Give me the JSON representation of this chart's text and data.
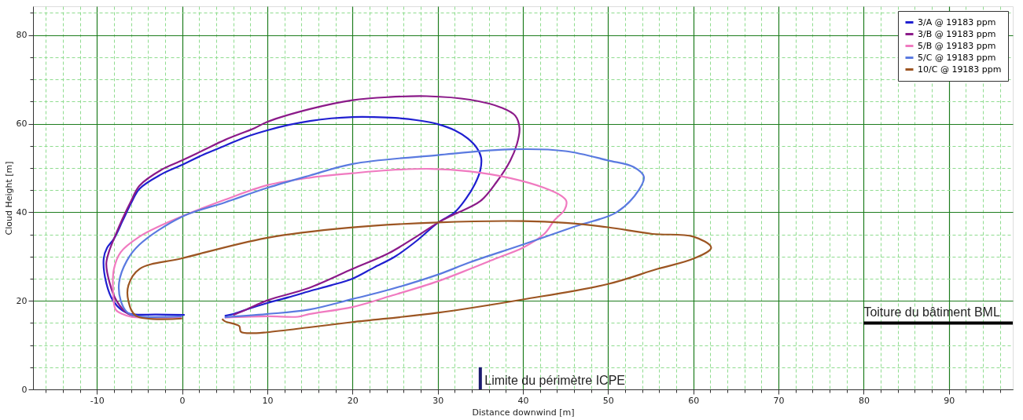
{
  "chart_data": {
    "type": "line",
    "xlabel": "Distance downwind [m]",
    "ylabel": "Cloud Height [m]",
    "xlim": [
      -17.5,
      97.5
    ],
    "ylim": [
      0,
      86.5
    ],
    "xticks": [
      {
        "value": -16,
        "label": null
      },
      {
        "value": -14,
        "label": null
      },
      {
        "value": -12,
        "label": null
      },
      -10,
      {
        "value": -8,
        "label": null
      },
      {
        "value": -6,
        "label": null
      },
      {
        "value": -4,
        "label": null
      },
      {
        "value": -2,
        "label": null
      },
      0,
      {
        "value": 2,
        "label": null
      },
      {
        "value": 4,
        "label": null
      },
      {
        "value": 6,
        "label": null
      },
      {
        "value": 8,
        "label": null
      },
      10,
      {
        "value": 12,
        "label": null
      },
      {
        "value": 14,
        "label": null
      },
      {
        "value": 16,
        "label": null
      },
      {
        "value": 18,
        "label": null
      },
      20,
      {
        "value": 22,
        "label": null
      },
      {
        "value": 24,
        "label": null
      },
      {
        "value": 26,
        "label": null
      },
      {
        "value": 28,
        "label": null
      },
      30,
      {
        "value": 32,
        "label": null
      },
      {
        "value": 34,
        "label": null
      },
      {
        "value": 36,
        "label": null
      },
      {
        "value": 38,
        "label": null
      },
      40,
      {
        "value": 42,
        "label": null
      },
      {
        "value": 44,
        "label": null
      },
      {
        "value": 46,
        "label": null
      },
      {
        "value": 48,
        "label": null
      },
      50,
      {
        "value": 52,
        "label": null
      },
      {
        "value": 54,
        "label": null
      },
      {
        "value": 56,
        "label": null
      },
      {
        "value": 58,
        "label": null
      },
      60,
      {
        "value": 62,
        "label": null
      },
      {
        "value": 64,
        "label": null
      },
      {
        "value": 66,
        "label": null
      },
      {
        "value": 68,
        "label": null
      },
      70,
      {
        "value": 72,
        "label": null
      },
      {
        "value": 74,
        "label": null
      },
      {
        "value": 76,
        "label": null
      },
      {
        "value": 78,
        "label": null
      },
      80,
      {
        "value": 82,
        "label": null
      },
      {
        "value": 84,
        "label": null
      },
      {
        "value": 86,
        "label": null
      },
      {
        "value": 88,
        "label": null
      },
      90,
      {
        "value": 92,
        "label": null
      },
      {
        "value": 94,
        "label": null
      },
      {
        "value": 96,
        "label": null
      }
    ],
    "yticks": [
      0,
      {
        "value": 5,
        "label": null
      },
      {
        "value": 10,
        "label": null
      },
      {
        "value": 15,
        "label": null
      },
      20,
      {
        "value": 25,
        "label": null
      },
      {
        "value": 30,
        "label": null
      },
      {
        "value": 35,
        "label": null
      },
      40,
      {
        "value": 45,
        "label": null
      },
      {
        "value": 50,
        "label": null
      },
      {
        "value": 55,
        "label": null
      },
      60,
      {
        "value": 65,
        "label": null
      },
      {
        "value": 70,
        "label": null
      },
      {
        "value": 75,
        "label": null
      },
      80,
      {
        "value": 85,
        "label": null
      }
    ],
    "grid": true,
    "legend": "top right",
    "marker": "none",
    "line_style": "solid",
    "series": [
      {
        "name": "3/A @ 19183 ppm",
        "color": "#1f1fd0",
        "x": [
          0.3,
          -3,
          -6,
          -7,
          -8.1,
          -8.9,
          -9.2,
          -8.8,
          -8,
          -7,
          -6,
          -5,
          -2.5,
          0,
          2.5,
          5,
          7.5,
          10,
          12.5,
          15,
          17.5,
          20,
          22.5,
          25,
          27.5,
          30,
          32,
          33.5,
          34.6,
          35.1,
          35,
          34.4,
          33.3,
          32,
          30,
          27.5,
          25,
          22.5,
          20,
          17.5,
          15,
          12.5,
          10,
          7.5,
          6,
          5
        ],
        "values": [
          16.8,
          16.9,
          17,
          17.8,
          20,
          24,
          29.6,
          32,
          34,
          38,
          42,
          45.3,
          48.5,
          50.7,
          53,
          55,
          57,
          58.5,
          59.7,
          60.6,
          61.2,
          61.5,
          61.5,
          61.3,
          60.8,
          59.9,
          58.5,
          56.7,
          54.5,
          52.3,
          49.5,
          46.5,
          43,
          40,
          37.6,
          33.5,
          30,
          27.5,
          25,
          23.5,
          22.2,
          20.8,
          19.5,
          18,
          17,
          16.6
        ]
      },
      {
        "name": "3/B @ 19183 ppm",
        "color": "#8b1a89",
        "x": [
          -4,
          -6.3,
          -7.7,
          -8.5,
          -8.9,
          -8.6,
          -8,
          -7,
          -6,
          -5,
          -2.5,
          0,
          2.5,
          5,
          8.5,
          10,
          15,
          20,
          24.3,
          28.7,
          33.8,
          37.5,
          39.1,
          39.6,
          39.3,
          38.5,
          36.9,
          35,
          31.8,
          30,
          27.5,
          24.3,
          20,
          14.9,
          10,
          7.5,
          6
        ],
        "values": [
          16.2,
          17,
          20,
          24,
          28.4,
          31,
          34,
          38.5,
          42.5,
          46,
          49.5,
          51.7,
          54,
          56.3,
          59,
          60.4,
          63.3,
          65.3,
          66,
          66.2,
          65.4,
          63.6,
          61.8,
          59,
          55.4,
          51.6,
          46.8,
          42.5,
          39.4,
          37.6,
          34.5,
          30.8,
          27.2,
          22.9,
          20.1,
          18,
          16.8
        ]
      },
      {
        "name": "5/B @ 19183 ppm",
        "color": "#f07ac0",
        "x": [
          0,
          -4,
          -6,
          -7,
          -7.8,
          -8.1,
          -8,
          -7.2,
          -5,
          -2.5,
          0,
          5,
          10,
          15,
          20,
          24.3,
          29.2,
          33.8,
          38.5,
          42.5,
          44.5,
          45.1,
          44.9,
          43.7,
          42.5,
          40,
          36.9,
          33.8,
          30,
          24.3,
          20,
          14.9,
          13.6,
          10,
          5
        ],
        "values": [
          16.2,
          16.2,
          16.4,
          17,
          18,
          22,
          27.2,
          31,
          34.5,
          37,
          39.1,
          42.8,
          46.1,
          47.8,
          48.8,
          49.5,
          49.8,
          49.2,
          47.7,
          45.5,
          43.7,
          42.5,
          40.6,
          38.2,
          35.1,
          32,
          29.6,
          27.2,
          24.4,
          21,
          18.6,
          17,
          16.4,
          16.5,
          16.2
        ]
      },
      {
        "name": "5/C @ 19183 ppm",
        "color": "#5a7ae0",
        "x": [
          0,
          -5.5,
          -6.5,
          -7.2,
          -7.4,
          -6.5,
          -5,
          0,
          5,
          10,
          15,
          20,
          30,
          38.8,
          45,
          50,
          53,
          54.2,
          53.6,
          51,
          46.3,
          40,
          33.8,
          30,
          24.3,
          20,
          14.9,
          9.9,
          5
        ],
        "values": [
          16.5,
          16.6,
          17.5,
          20,
          24.1,
          29,
          32.7,
          39,
          42.2,
          45.5,
          48.3,
          50.9,
          52.9,
          54.2,
          53.8,
          51.7,
          50.2,
          48,
          45,
          40,
          36.9,
          32.7,
          28.7,
          25.9,
          22.5,
          20.4,
          18,
          17,
          16.3
        ]
      },
      {
        "name": "10/C @ 19183 ppm",
        "color": "#9c5522",
        "x": [
          0,
          -5.4,
          -6.3,
          -6.3,
          -5,
          0,
          9.9,
          19.5,
          30,
          40,
          45,
          50,
          55.2,
          60,
          62.1,
          60,
          55.8,
          50,
          40,
          30,
          20,
          14.9,
          10,
          8.7,
          6.9,
          6.7,
          5,
          4.7
        ],
        "values": [
          16,
          16.6,
          19.9,
          23.5,
          27.2,
          29.6,
          34.2,
          36.5,
          37.7,
          38,
          37.6,
          36.6,
          35.1,
          34.5,
          32,
          29.5,
          27.2,
          23.8,
          20.3,
          17.3,
          15.2,
          14,
          12.9,
          12.7,
          13,
          14.3,
          15.4,
          15.9
        ]
      },
      {
        "color": "#1a1a6e",
        "x": [
          35,
          35
        ],
        "values": [
          0,
          5
        ]
      },
      {
        "color": "#000000",
        "x": [
          80,
          97.5
        ],
        "values": [
          15,
          15
        ]
      }
    ],
    "annotations": [
      {
        "text": "Limite du périmètre ICPE",
        "x": 35.5,
        "y": 0.5
      },
      {
        "text": "Toiture du bâtiment BML",
        "x": 80,
        "y": 16
      }
    ]
  }
}
